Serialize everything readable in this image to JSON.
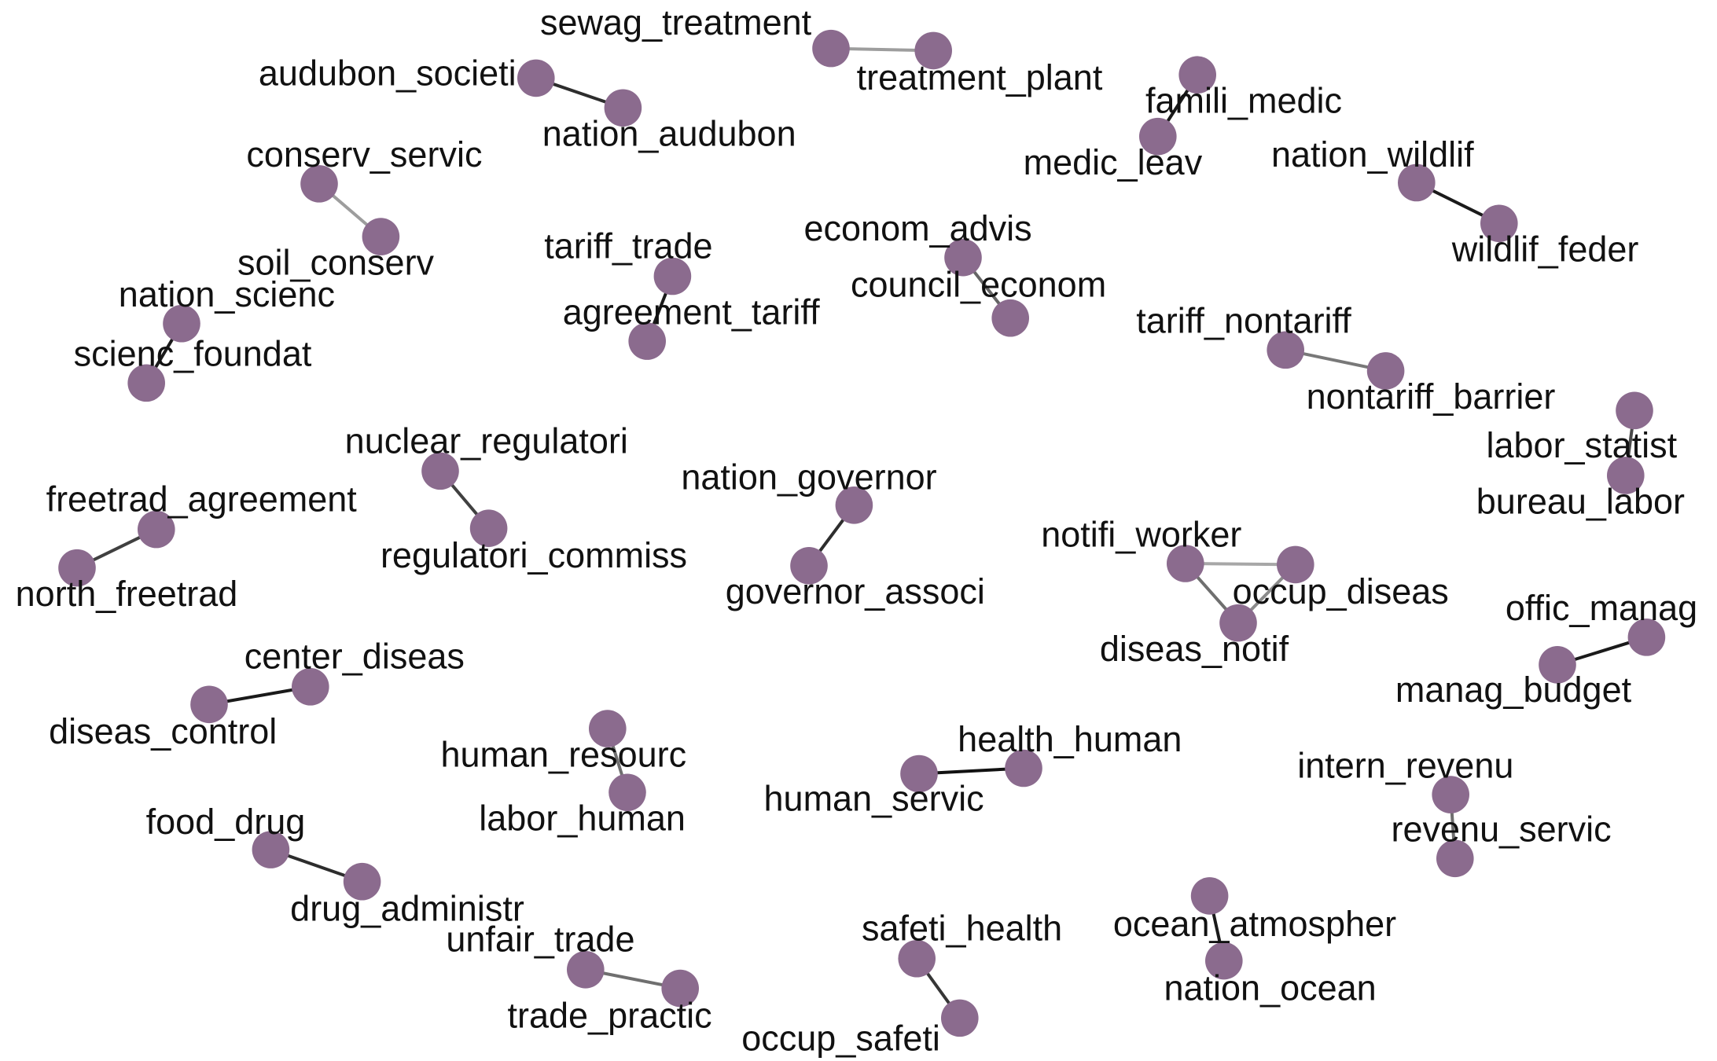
{
  "graph": {
    "node_color": "#8b6b8e",
    "edge_color_strong": "#111111",
    "edge_color_medium": "#555555",
    "edge_color_weak": "#cccccc",
    "pairs": [
      {
        "a": "sewag_treatment",
        "b": "treatment_plant",
        "weight": 0.25
      },
      {
        "a": "audubon_societi",
        "b": "nation_audubon",
        "weight": 0.85
      },
      {
        "a": "famili_medic",
        "b": "medic_leav",
        "weight": 0.95
      },
      {
        "a": "conserv_servic",
        "b": "soil_conserv",
        "weight": 0.25
      },
      {
        "a": "nation_wildlif",
        "b": "wildlif_feder",
        "weight": 0.95
      },
      {
        "a": "tariff_trade",
        "b": "agreement_tariff",
        "weight": 0.95
      },
      {
        "a": "econom_advis",
        "b": "council_econom",
        "weight": 0.55
      },
      {
        "a": "nation_scienc",
        "b": "scienc_foundat",
        "weight": 0.95
      },
      {
        "a": "tariff_nontariff",
        "b": "nontariff_barrier",
        "weight": 0.45
      },
      {
        "a": "labor_statist",
        "b": "bureau_labor",
        "weight": 0.7
      },
      {
        "a": "nuclear_regulatori",
        "b": "regulatori_commiss",
        "weight": 0.75
      },
      {
        "a": "nation_governor",
        "b": "governor_associ",
        "weight": 0.85
      },
      {
        "a": "freetrad_agreement",
        "b": "north_freetrad",
        "weight": 0.75
      },
      {
        "a": "offic_manag",
        "b": "manag_budget",
        "weight": 0.95
      },
      {
        "a": "center_diseas",
        "b": "diseas_control",
        "weight": 0.95
      },
      {
        "a": "human_resourc",
        "b": "labor_human",
        "weight": 0.5
      },
      {
        "a": "health_human",
        "b": "human_servic",
        "weight": 1.0
      },
      {
        "a": "intern_revenu",
        "b": "revenu_servic",
        "weight": 0.5
      },
      {
        "a": "food_drug",
        "b": "drug_administr",
        "weight": 0.85
      },
      {
        "a": "ocean_atmospher",
        "b": "nation_ocean",
        "weight": 0.95
      },
      {
        "a": "safeti_health",
        "b": "occup_safeti",
        "weight": 0.8
      },
      {
        "a": "unfair_trade",
        "b": "trade_practic",
        "weight": 0.5
      }
    ],
    "triangle": {
      "nodes": [
        "notifi_worker",
        "occup_diseas",
        "diseas_notif"
      ],
      "edges": [
        {
          "a": "notifi_worker",
          "b": "occup_diseas",
          "weight": 0.2
        },
        {
          "a": "notifi_worker",
          "b": "diseas_notif",
          "weight": 0.5
        },
        {
          "a": "occup_diseas",
          "b": "diseas_notif",
          "weight": 0.35
        }
      ]
    }
  }
}
